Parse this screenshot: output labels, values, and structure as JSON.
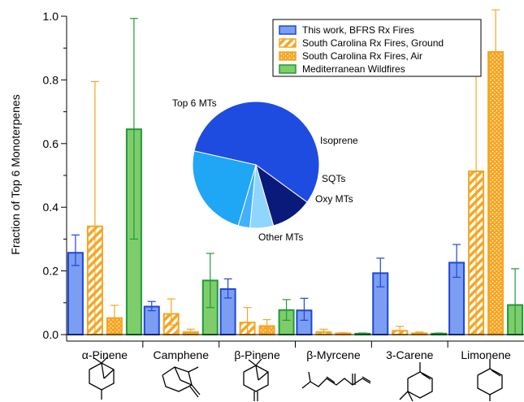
{
  "chart_data": {
    "type": "bar",
    "ylabel": "Fraction of Top 6 Monoterpenes",
    "ylim": [
      0,
      1.0
    ],
    "yticks": [
      "0.0",
      "0.2",
      "0.4",
      "0.6",
      "0.8",
      "1.0"
    ],
    "grid": false,
    "legend_position": "top-right",
    "categories": [
      "α-Pinene",
      "Camphene",
      "β-Pinene",
      "β-Myrcene",
      "3-Carene",
      "Limonene"
    ],
    "series": [
      {
        "name": "This work, BFRS Rx Fires",
        "pattern": "solid",
        "fill": "#7b9ef2",
        "stroke": "#1f46d6",
        "values": [
          0.257,
          0.088,
          0.143,
          0.076,
          0.193,
          0.226
        ],
        "err_low": [
          0.217,
          0.075,
          0.115,
          0.045,
          0.15,
          0.18
        ],
        "err_high": [
          0.313,
          0.104,
          0.175,
          0.114,
          0.24,
          0.283
        ]
      },
      {
        "name": "South Carolina Rx Fires, Ground",
        "pattern": "hatch",
        "fill": "#f6a623",
        "stroke": "#f6a623",
        "values": [
          0.34,
          0.065,
          0.038,
          0.008,
          0.012,
          0.513
        ],
        "err_low": [
          0.0,
          0.03,
          0.0,
          0.0,
          0.0,
          0.0
        ],
        "err_high": [
          0.795,
          0.112,
          0.085,
          0.017,
          0.026,
          0.876
        ]
      },
      {
        "name": "South Carolina Rx Fires, Air",
        "pattern": "dots",
        "fill": "#f6a623",
        "stroke": "#f6a623",
        "values": [
          0.052,
          0.008,
          0.027,
          0.004,
          0.004,
          0.888
        ],
        "err_low": [
          0.0,
          0.0,
          0.0,
          0.0,
          0.0,
          0.75
        ],
        "err_high": [
          0.092,
          0.017,
          0.047,
          0.006,
          0.008,
          1.02
        ]
      },
      {
        "name": "Mediterranean Wildfires",
        "pattern": "solid",
        "fill": "#7fcc6b",
        "stroke": "#1f9a3a",
        "values": [
          0.645,
          0.17,
          0.077,
          0.003,
          0.003,
          0.093
        ],
        "err_low": [
          0.3,
          0.085,
          0.045,
          0.0,
          0.0,
          0.0
        ],
        "err_high": [
          0.993,
          0.255,
          0.11,
          0.005,
          0.005,
          0.207
        ]
      }
    ],
    "inset_pie": {
      "type": "pie",
      "slices": [
        {
          "label": "Top 6 MTs",
          "value": 0.565,
          "color": "#1e4ce0"
        },
        {
          "label": "Isoprene",
          "value": 0.105,
          "color": "#0a1a7a"
        },
        {
          "label": "SQTs",
          "value": 0.06,
          "color": "#8fd6ff"
        },
        {
          "label": "Oxy MTs",
          "value": 0.03,
          "color": "#40b0ff"
        },
        {
          "label": "Other MTs",
          "value": 0.24,
          "color": "#1fa6f5"
        }
      ]
    }
  }
}
